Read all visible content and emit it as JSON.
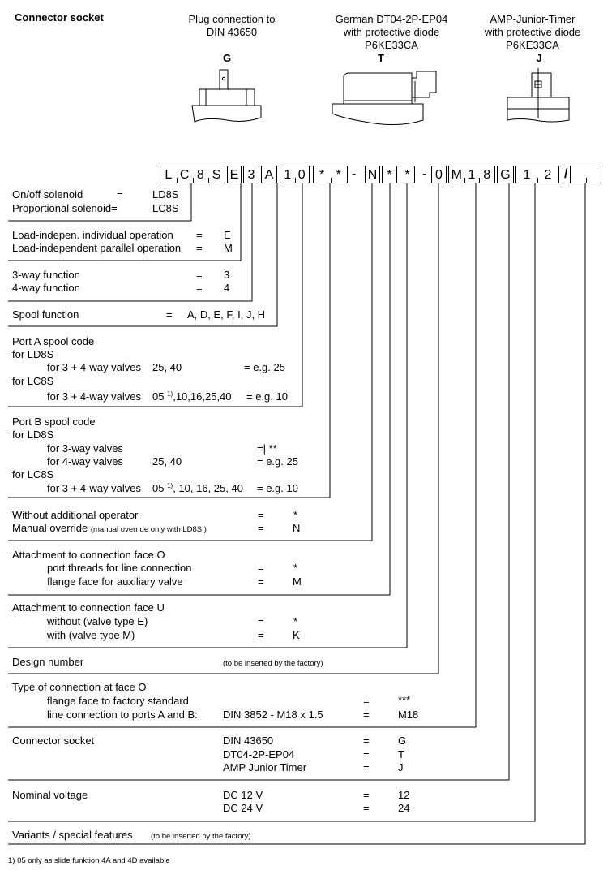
{
  "header": {
    "title": "Connector socket",
    "connectors": [
      {
        "lines": [
          "Plug connection to",
          "DIN 43650"
        ],
        "code": "G"
      },
      {
        "lines": [
          "German DT04-2P-EP04",
          "with protective diode",
          "P6KE33CA"
        ],
        "code": "T"
      },
      {
        "lines": [
          "AMP-Junior-Timer",
          "with protective diode",
          "P6KE33CA"
        ],
        "code": "J"
      }
    ]
  },
  "code": {
    "boxes": [
      [
        "L",
        "C",
        "8",
        "S"
      ],
      [
        "E"
      ],
      [
        "3"
      ],
      [
        "A"
      ],
      [
        "1",
        "0"
      ],
      [
        "*",
        "*"
      ],
      [
        "N"
      ],
      [
        "*"
      ],
      [
        "*"
      ],
      [
        "0"
      ],
      [
        "M",
        "1",
        "8"
      ],
      [
        "G"
      ],
      [
        "1",
        "2"
      ],
      [
        "",
        ""
      ]
    ],
    "dash": "-",
    "slash": "/"
  },
  "sections": {
    "solenoid": {
      "rows": [
        [
          "On/off solenoid",
          "=",
          "LD8S"
        ],
        [
          "Proportional solenoid=",
          "",
          "LC8S"
        ]
      ]
    },
    "operation": {
      "rows": [
        [
          "Load-indepen. individual operation",
          "=",
          "E"
        ],
        [
          "Load-independent parallel operation",
          "=",
          "M"
        ]
      ]
    },
    "way": {
      "rows": [
        [
          "3-way function",
          "=",
          "3"
        ],
        [
          "4-way function",
          "=",
          "4"
        ]
      ]
    },
    "spool": {
      "label": "Spool function",
      "eq": "=",
      "value": "A, D, E, F, I, J, H"
    },
    "port_a": {
      "title": "Port A spool code",
      "ld8s": "for LD8S",
      "ld8s_row": [
        "for 3 + 4-way valves",
        "25, 40",
        "= e.g. 25"
      ],
      "lc8s": "for LC8S",
      "lc8s_row": [
        "for 3 + 4-way valves",
        "05",
        "1)",
        ",10,16,25,40",
        "= e.g. 10"
      ]
    },
    "port_b": {
      "title": "Port B spool code",
      "ld8s": "for LD8S",
      "row3": [
        "for 3-way valves",
        "=| **"
      ],
      "row4": [
        "for 4-way valves",
        "25, 40",
        "= e.g. 25"
      ],
      "lc8s": "for LC8S",
      "lc8s_row": [
        "for 3 + 4-way valves",
        "05",
        "1)",
        ", 10, 16, 25, 40",
        "= e.g. 10"
      ]
    },
    "operator": {
      "rows": [
        [
          "Without additional operator",
          "=",
          "*"
        ],
        [
          "Manual override",
          "=",
          "N"
        ]
      ],
      "note": "(manual override only with LD8S )"
    },
    "face_o": {
      "title": "Attachment to connection face O",
      "rows": [
        [
          "port threads for line connection",
          "=",
          "*"
        ],
        [
          "flange face for auxiliary valve",
          "=",
          "M"
        ]
      ]
    },
    "face_u": {
      "title": "Attachment to connection face U",
      "rows": [
        [
          "without (valve type E)",
          "=",
          "*"
        ],
        [
          "with (valve type M)",
          "=",
          "K"
        ]
      ]
    },
    "design": {
      "label": "Design number",
      "note": "(to be inserted by the factory)"
    },
    "conn_type": {
      "title": "Type of connection at face O",
      "rows": [
        [
          "flange face to factory standard",
          "",
          "=",
          "***"
        ],
        [
          "line connection to ports A and B:",
          "DIN 3852 - M18 x 1.5",
          "=",
          "M18"
        ]
      ]
    },
    "socket": {
      "label": "Connector socket",
      "rows": [
        [
          "DIN 43650",
          "=",
          "G"
        ],
        [
          "DT04-2P-EP04",
          "=",
          "T"
        ],
        [
          "AMP Junior Timer",
          "=",
          "J"
        ]
      ]
    },
    "voltage": {
      "label": "Nominal voltage",
      "rows": [
        [
          "DC 12 V",
          "=",
          "12"
        ],
        [
          "DC 24 V",
          "=",
          "24"
        ]
      ]
    },
    "variants": {
      "label": "Variants / special features",
      "note": "(to be inserted by the factory)"
    }
  },
  "footnote": "1) 05 only as slide funktion 4A and 4D available"
}
